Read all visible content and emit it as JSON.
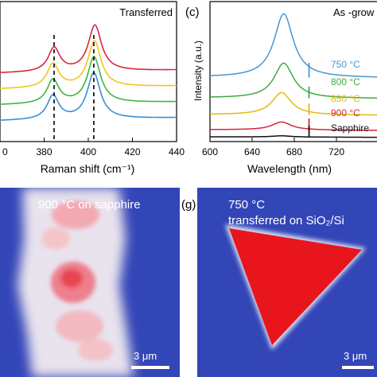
{
  "chart_data": [
    {
      "type": "line",
      "panel_label": "",
      "title": "Transferred",
      "xlabel": "Raman shift (cm⁻¹)",
      "ylabel": "",
      "xlim": [
        360,
        440
      ],
      "xticks": [
        "0",
        "380",
        "400",
        "420",
        "440"
      ],
      "grid": false,
      "series": [
        {
          "color": "#d7263d",
          "peak1": 384.5,
          "peak2": 403.0
        },
        {
          "color": "#f2c618",
          "peak1": 384.0,
          "peak2": 402.8
        },
        {
          "color": "#3fb63f",
          "peak1": 384.0,
          "peak2": 402.6
        },
        {
          "color": "#3a8fd0",
          "peak1": 384.0,
          "peak2": 402.5
        }
      ],
      "dashed_markers_x": [
        384.5,
        402.5
      ]
    },
    {
      "type": "line",
      "panel_label": "(c)",
      "title": "As -grow",
      "xlabel": "Wavelength (nm)",
      "ylabel": "Intensity (a.u.)",
      "xlim": [
        600,
        760
      ],
      "xticks": [
        "600",
        "640",
        "680",
        "720"
      ],
      "grid": false,
      "series": [
        {
          "name": "750 °C",
          "color": "#4a95d0",
          "peak": 670,
          "amplitude": 1.0
        },
        {
          "name": "800 °C",
          "color": "#3faa3f",
          "peak": 670,
          "amplitude": 0.55
        },
        {
          "name": "850 °C",
          "color": "#e8b810",
          "peak": 668,
          "amplitude": 0.35
        },
        {
          "name": "900 °C",
          "color": "#d7263d",
          "peak": 668,
          "amplitude": 0.12
        },
        {
          "name": "Sapphire",
          "color": "#111111",
          "peak": 668,
          "amplitude": 0.02
        }
      ],
      "spike_x": 694
    }
  ],
  "map_left": {
    "label": "900 °C on sapphire",
    "scale_bar": "3 μm"
  },
  "map_right": {
    "panel_label": "(g)",
    "label_line1": "750 °C",
    "label_line2": "transferred on SiO₂/Si",
    "scale_bar": "3 μm"
  },
  "colors": {
    "map_background": "#3346b8",
    "map_hot": "#e8161c"
  }
}
